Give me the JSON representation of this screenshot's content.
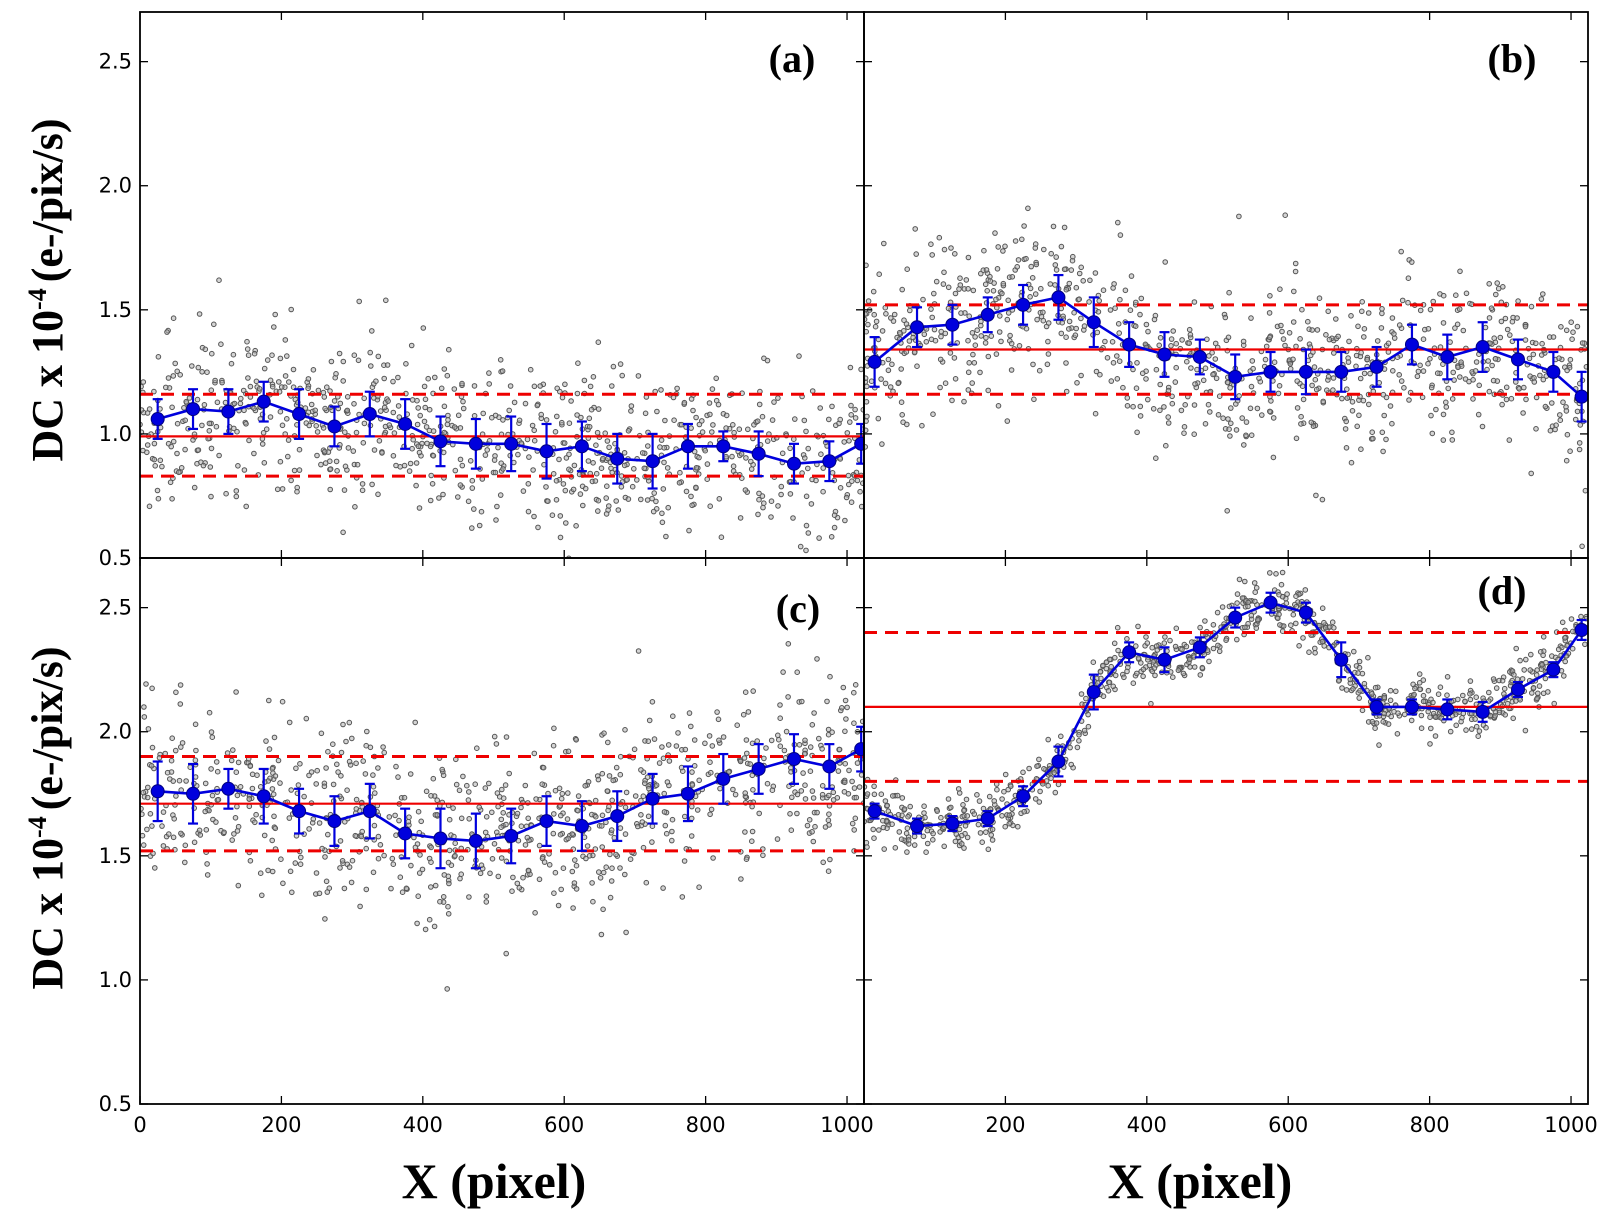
{
  "figure": {
    "ylabel": "DC x 10",
    "ylabel_exponent": "-4",
    "ylabel_units": "(e-/pix/s)",
    "xlabel": "X (pixel)"
  },
  "colors": {
    "scatter": "#555555",
    "mean_line": "#0000dd",
    "reference": "#ee0000"
  },
  "chart_data": [
    {
      "type": "scatter",
      "panel": "(a)",
      "xlim": [
        0,
        1024
      ],
      "ylim": [
        0.5,
        2.7
      ],
      "xticks": [
        0,
        200,
        400,
        600,
        800,
        1000
      ],
      "yticks": [
        0.5,
        1.0,
        1.5,
        2.0,
        2.5
      ],
      "ytick_labels": [
        "0.5",
        "1.0",
        "1.5",
        "2.0",
        "2.5"
      ],
      "reference": {
        "mean": 0.99,
        "upper": 1.16,
        "lower": 0.83
      },
      "binned_x": [
        25,
        75,
        125,
        175,
        225,
        275,
        325,
        375,
        425,
        475,
        525,
        575,
        625,
        675,
        725,
        775,
        825,
        875,
        925,
        975,
        1020
      ],
      "binned_y": [
        1.06,
        1.1,
        1.09,
        1.13,
        1.08,
        1.03,
        1.08,
        1.04,
        0.97,
        0.96,
        0.96,
        0.93,
        0.95,
        0.9,
        0.89,
        0.95,
        0.95,
        0.92,
        0.88,
        0.89,
        0.96
      ],
      "binned_err": [
        0.08,
        0.08,
        0.09,
        0.08,
        0.1,
        0.08,
        0.09,
        0.1,
        0.1,
        0.1,
        0.11,
        0.11,
        0.1,
        0.1,
        0.11,
        0.09,
        0.06,
        0.09,
        0.08,
        0.08,
        0.08
      ],
      "scatter_spread": 0.16
    },
    {
      "type": "scatter",
      "panel": "(b)",
      "xlim": [
        0,
        1024
      ],
      "ylim": [
        0.5,
        2.7
      ],
      "xticks": [
        200,
        400,
        600,
        800,
        1000
      ],
      "yticks": [
        0.5,
        1.0,
        1.5,
        2.0,
        2.5
      ],
      "ytick_labels": [],
      "reference": {
        "mean": 1.34,
        "upper": 1.52,
        "lower": 1.16
      },
      "binned_x": [
        15,
        75,
        125,
        175,
        225,
        275,
        325,
        375,
        425,
        475,
        525,
        575,
        625,
        675,
        725,
        775,
        825,
        875,
        925,
        975,
        1015
      ],
      "binned_y": [
        1.29,
        1.43,
        1.44,
        1.48,
        1.52,
        1.55,
        1.45,
        1.36,
        1.32,
        1.31,
        1.23,
        1.25,
        1.25,
        1.25,
        1.27,
        1.36,
        1.31,
        1.35,
        1.3,
        1.25,
        1.15
      ],
      "binned_err": [
        0.1,
        0.08,
        0.08,
        0.07,
        0.08,
        0.09,
        0.1,
        0.09,
        0.09,
        0.07,
        0.09,
        0.08,
        0.09,
        0.08,
        0.08,
        0.08,
        0.09,
        0.1,
        0.08,
        0.08,
        0.1
      ],
      "scatter_spread": 0.17
    },
    {
      "type": "scatter",
      "panel": "(c)",
      "xlim": [
        0,
        1024
      ],
      "ylim": [
        0.5,
        2.7
      ],
      "xticks": [
        0,
        200,
        400,
        600,
        800,
        1000
      ],
      "yticks": [
        0.5,
        1.0,
        1.5,
        2.0,
        2.5
      ],
      "ytick_labels": [
        "0.5",
        "1.0",
        "1.5",
        "2.0",
        "2.5"
      ],
      "reference": {
        "mean": 1.71,
        "upper": 1.9,
        "lower": 1.52
      },
      "binned_x": [
        25,
        75,
        125,
        175,
        225,
        275,
        325,
        375,
        425,
        475,
        525,
        575,
        625,
        675,
        725,
        775,
        825,
        875,
        925,
        975,
        1020
      ],
      "binned_y": [
        1.76,
        1.75,
        1.77,
        1.74,
        1.68,
        1.64,
        1.68,
        1.59,
        1.57,
        1.56,
        1.58,
        1.64,
        1.62,
        1.66,
        1.73,
        1.75,
        1.81,
        1.85,
        1.89,
        1.86,
        1.93
      ],
      "binned_err": [
        0.12,
        0.12,
        0.08,
        0.11,
        0.09,
        0.1,
        0.11,
        0.1,
        0.12,
        0.11,
        0.11,
        0.1,
        0.1,
        0.1,
        0.1,
        0.11,
        0.1,
        0.1,
        0.1,
        0.09,
        0.09
      ],
      "scatter_spread": 0.18
    },
    {
      "type": "scatter",
      "panel": "(d)",
      "xlim": [
        0,
        1024
      ],
      "ylim": [
        0.5,
        2.7
      ],
      "xticks": [
        200,
        400,
        600,
        800,
        1000
      ],
      "yticks": [
        0.5,
        1.0,
        1.5,
        2.0,
        2.5
      ],
      "ytick_labels": [],
      "reference": {
        "mean": 2.1,
        "upper": 2.4,
        "lower": 1.8
      },
      "binned_x": [
        15,
        75,
        125,
        175,
        225,
        275,
        325,
        375,
        425,
        475,
        525,
        575,
        625,
        675,
        725,
        775,
        825,
        875,
        925,
        975,
        1015
      ],
      "binned_y": [
        1.68,
        1.62,
        1.63,
        1.65,
        1.74,
        1.88,
        2.16,
        2.32,
        2.29,
        2.34,
        2.46,
        2.52,
        2.48,
        2.29,
        2.1,
        2.1,
        2.09,
        2.08,
        2.17,
        2.25,
        2.41
      ],
      "binned_err": [
        0.03,
        0.03,
        0.03,
        0.03,
        0.04,
        0.06,
        0.07,
        0.04,
        0.05,
        0.04,
        0.04,
        0.04,
        0.04,
        0.07,
        0.03,
        0.03,
        0.04,
        0.04,
        0.03,
        0.03,
        0.04
      ],
      "scatter_spread": 0.06
    }
  ]
}
